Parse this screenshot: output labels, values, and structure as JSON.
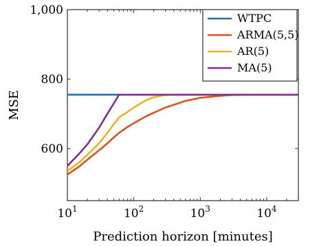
{
  "chart_data": {
    "type": "line",
    "title": "",
    "xlabel": "Prediction horizon [minutes]",
    "ylabel": "MSE",
    "xscale": "log",
    "xlim": [
      10,
      30000
    ],
    "ylim": [
      450,
      1000
    ],
    "x_ticks": [
      {
        "value": 10,
        "base": "10",
        "exp": "1"
      },
      {
        "value": 100,
        "base": "10",
        "exp": "2"
      },
      {
        "value": 1000,
        "base": "10",
        "exp": "3"
      },
      {
        "value": 10000,
        "base": "10",
        "exp": "4"
      }
    ],
    "y_ticks": [
      {
        "value": 600,
        "label": "600"
      },
      {
        "value": 800,
        "label": "800"
      },
      {
        "value": 1000,
        "label": "1,000"
      }
    ],
    "legend": {
      "position": "top-right"
    },
    "grid": false,
    "series": [
      {
        "name": "WTPC",
        "color": "#1f6fb4",
        "x": [
          10,
          30000
        ],
        "y": [
          755,
          755
        ]
      },
      {
        "name": "ARMA(5,5)",
        "color": "#d95319",
        "x": [
          10,
          15,
          20,
          30,
          40,
          50,
          60,
          80,
          100,
          150,
          200,
          300,
          400,
          600,
          1000,
          2000,
          3000,
          5000,
          10000,
          30000
        ],
        "y": [
          525,
          548,
          568,
          595,
          615,
          632,
          645,
          662,
          673,
          692,
          703,
          718,
          726,
          737,
          746,
          752,
          754,
          755,
          755,
          755
        ]
      },
      {
        "name": "AR(5)",
        "color": "#edb120",
        "x": [
          10,
          15,
          20,
          30,
          40,
          50,
          60,
          80,
          100,
          150,
          200,
          300,
          400,
          1000,
          30000
        ],
        "y": [
          535,
          560,
          582,
          615,
          645,
          670,
          690,
          705,
          718,
          738,
          748,
          754,
          755,
          755,
          755
        ]
      },
      {
        "name": "MA(5)",
        "color": "#7e2f8e",
        "x": [
          10,
          15,
          20,
          30,
          40,
          50,
          60,
          100,
          30000
        ],
        "y": [
          550,
          585,
          612,
          660,
          700,
          730,
          755,
          755,
          755
        ]
      }
    ]
  }
}
